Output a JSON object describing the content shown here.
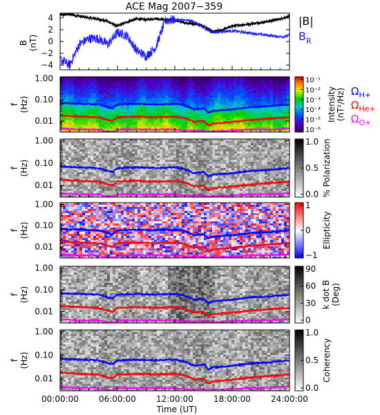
{
  "title": "ACE Mag 2007−359",
  "x_axis": {
    "label": "Time (UT)",
    "ticks": [
      "00:00:00",
      "06:00:00",
      "12:00:00",
      "18:00:00",
      "24:00:00"
    ],
    "range_hours": [
      0,
      24
    ]
  },
  "panel1": {
    "ylabel_line1": "B",
    "ylabel_line2": "(nT)",
    "yticks": [
      "4",
      "2",
      "0",
      "−2",
      "−4"
    ],
    "ylim": [
      -4.8,
      4.8
    ],
    "legend_B": "|B|",
    "legend_BR": "B",
    "legend_BR_sub": "R"
  },
  "freq_axis": {
    "ylabel_line1": "f",
    "ylabel_line2": "(Hz)",
    "yticks": [
      "1.00",
      "0.10",
      "0.01"
    ],
    "range_hz": [
      0.003,
      1.2
    ]
  },
  "panel2": {
    "cb_label_line1": "Intensity",
    "cb_label_line2": "(nT²/Hz)",
    "cb_ticks": [
      "10⁻¹",
      "10⁻²",
      "10⁻³",
      "10⁻⁴",
      "10⁻⁵",
      "10⁻⁶"
    ],
    "gyro_H": "Ω",
    "gyro_H_sub": "H+",
    "gyro_He": "Ω",
    "gyro_He_sub": "He+",
    "gyro_O": "Ω",
    "gyro_O_sub": "O+"
  },
  "panel3": {
    "cb_label": "% Polarization",
    "cb_ticks": [
      "1.0",
      "0.5",
      "0.0"
    ]
  },
  "panel4": {
    "cb_label": "Ellipticity",
    "cb_ticks": [
      "1",
      "0",
      "−1"
    ]
  },
  "panel5": {
    "cb_label_line1": "k dot B",
    "cb_label_line2": "(Deg)",
    "cb_ticks": [
      "90",
      "60",
      "30",
      "0"
    ]
  },
  "panel6": {
    "cb_label": "Coherency",
    "cb_ticks": [
      "1.0",
      "0.5",
      "0.0"
    ]
  },
  "colors": {
    "B_total": "#000000",
    "B_R": "#1a1aff",
    "H_gyro": "#0000ff",
    "He_gyro": "#ff0000",
    "O_gyro": "#ff00ff"
  },
  "chart_data": [
    {
      "type": "line",
      "title": "ACE Mag 2007−359",
      "xlabel": "Time (UT)",
      "ylabel": "B (nT)",
      "ylim": [
        -4.8,
        4.8
      ],
      "x_hours": [
        0,
        1,
        2,
        3,
        4,
        5,
        6,
        7,
        8,
        9,
        10,
        11,
        12,
        13,
        14,
        15,
        16,
        17,
        18,
        19,
        20,
        21,
        22,
        23,
        24
      ],
      "series": [
        {
          "name": "|B|",
          "values": [
            4.5,
            4.6,
            4.3,
            4.0,
            3.8,
            3.4,
            2.6,
            3.3,
            3.8,
            3.7,
            3.9,
            3.7,
            3.6,
            3.2,
            3.0,
            2.6,
            1.6,
            2.0,
            2.6,
            2.8,
            3.0,
            3.2,
            3.5,
            3.8,
            4.3
          ]
        },
        {
          "name": "B",
          "values": [
            -3.0,
            -4.0,
            -0.5,
            0.5,
            0.5,
            -0.5,
            1.5,
            1.0,
            -1.5,
            -2.5,
            -1.0,
            3.5,
            3.7,
            3.6,
            3.4,
            2.3,
            1.5,
            1.7,
            1.8,
            1.6,
            1.4,
            1.2,
            1.0,
            0.8,
            1.0
          ]
        }
      ]
    },
    {
      "type": "heatmap",
      "xlabel": "Time (UT)",
      "ylabel": "f (Hz)",
      "y_scale": "log",
      "colorbar": "Intensity (nT²/Hz)",
      "colorbar_range": [
        "10⁻⁶",
        "10⁻¹"
      ],
      "overlay_lines_hz": {
        "x_hours": [
          0,
          2,
          4,
          5,
          5.5,
          6,
          8,
          10,
          12,
          13,
          14,
          15,
          15.5,
          16,
          18,
          20,
          22,
          24
        ],
        "ΩH+": [
          0.07,
          0.065,
          0.06,
          0.045,
          0.04,
          0.06,
          0.065,
          0.06,
          0.065,
          0.055,
          0.035,
          0.04,
          0.025,
          0.03,
          0.035,
          0.045,
          0.05,
          0.06
        ],
        "ΩHe+": [
          0.018,
          0.016,
          0.015,
          0.011,
          0.01,
          0.015,
          0.016,
          0.015,
          0.016,
          0.014,
          0.009,
          0.01,
          0.006,
          0.0075,
          0.009,
          0.011,
          0.013,
          0.015
        ],
        "ΩO+": [
          0.0045,
          0.004,
          0.004,
          0.003,
          0.003,
          0.004,
          0.004,
          0.004,
          0.004,
          0.0035,
          0.0035,
          0.0035,
          0.003,
          0.0033,
          0.0035,
          0.004,
          0.004,
          0.0045
        ]
      }
    },
    {
      "type": "heatmap",
      "xlabel": "Time (UT)",
      "ylabel": "f (Hz)",
      "colorbar": "% Polarization",
      "colorbar_range": [
        0,
        1
      ]
    },
    {
      "type": "heatmap",
      "xlabel": "Time (UT)",
      "ylabel": "f (Hz)",
      "colorbar": "Ellipticity",
      "colorbar_range": [
        -1,
        1
      ]
    },
    {
      "type": "heatmap",
      "xlabel": "Time (UT)",
      "ylabel": "f (Hz)",
      "colorbar": "k dot B (Deg)",
      "colorbar_range": [
        0,
        90
      ]
    },
    {
      "type": "heatmap",
      "xlabel": "Time (UT)",
      "ylabel": "f (Hz)",
      "colorbar": "Coherency",
      "colorbar_range": [
        0,
        1
      ]
    }
  ]
}
